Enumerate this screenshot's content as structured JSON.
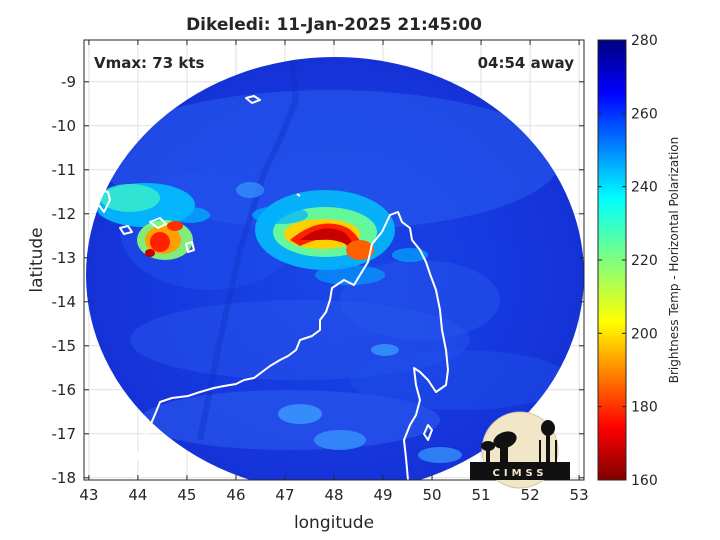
{
  "title": "Dikeledi: 11-Jan-2025 21:45:00",
  "vmax": "Vmax: 73 kts",
  "away": "04:54 away",
  "xlabel": "longitude",
  "ylabel": "latitude",
  "colorbar_label": "Brightness Temp - Horizontal Polarization",
  "logo_text": "CIMSS",
  "chart_data": {
    "type": "heatmap",
    "title": "Dikeledi: 11-Jan-2025 21:45:00",
    "xlabel": "longitude",
    "ylabel": "latitude",
    "xlim": [
      42.9,
      53.1
    ],
    "ylim": [
      -18.05,
      -8.05
    ],
    "x_ticks": [
      43,
      44,
      45,
      46,
      47,
      48,
      49,
      50,
      51,
      52,
      53
    ],
    "y_ticks": [
      -9,
      -10,
      -11,
      -12,
      -13,
      -14,
      -15,
      -16,
      -17,
      -18
    ],
    "colorbar": {
      "label": "Brightness Temp - Horizontal Polarization",
      "range": [
        160,
        280
      ],
      "ticks": [
        280,
        260,
        240,
        220,
        200,
        180,
        160
      ],
      "colormap": "jet"
    },
    "annotations": [
      "Vmax: 73 kts",
      "04:54 away"
    ],
    "grid": true
  }
}
